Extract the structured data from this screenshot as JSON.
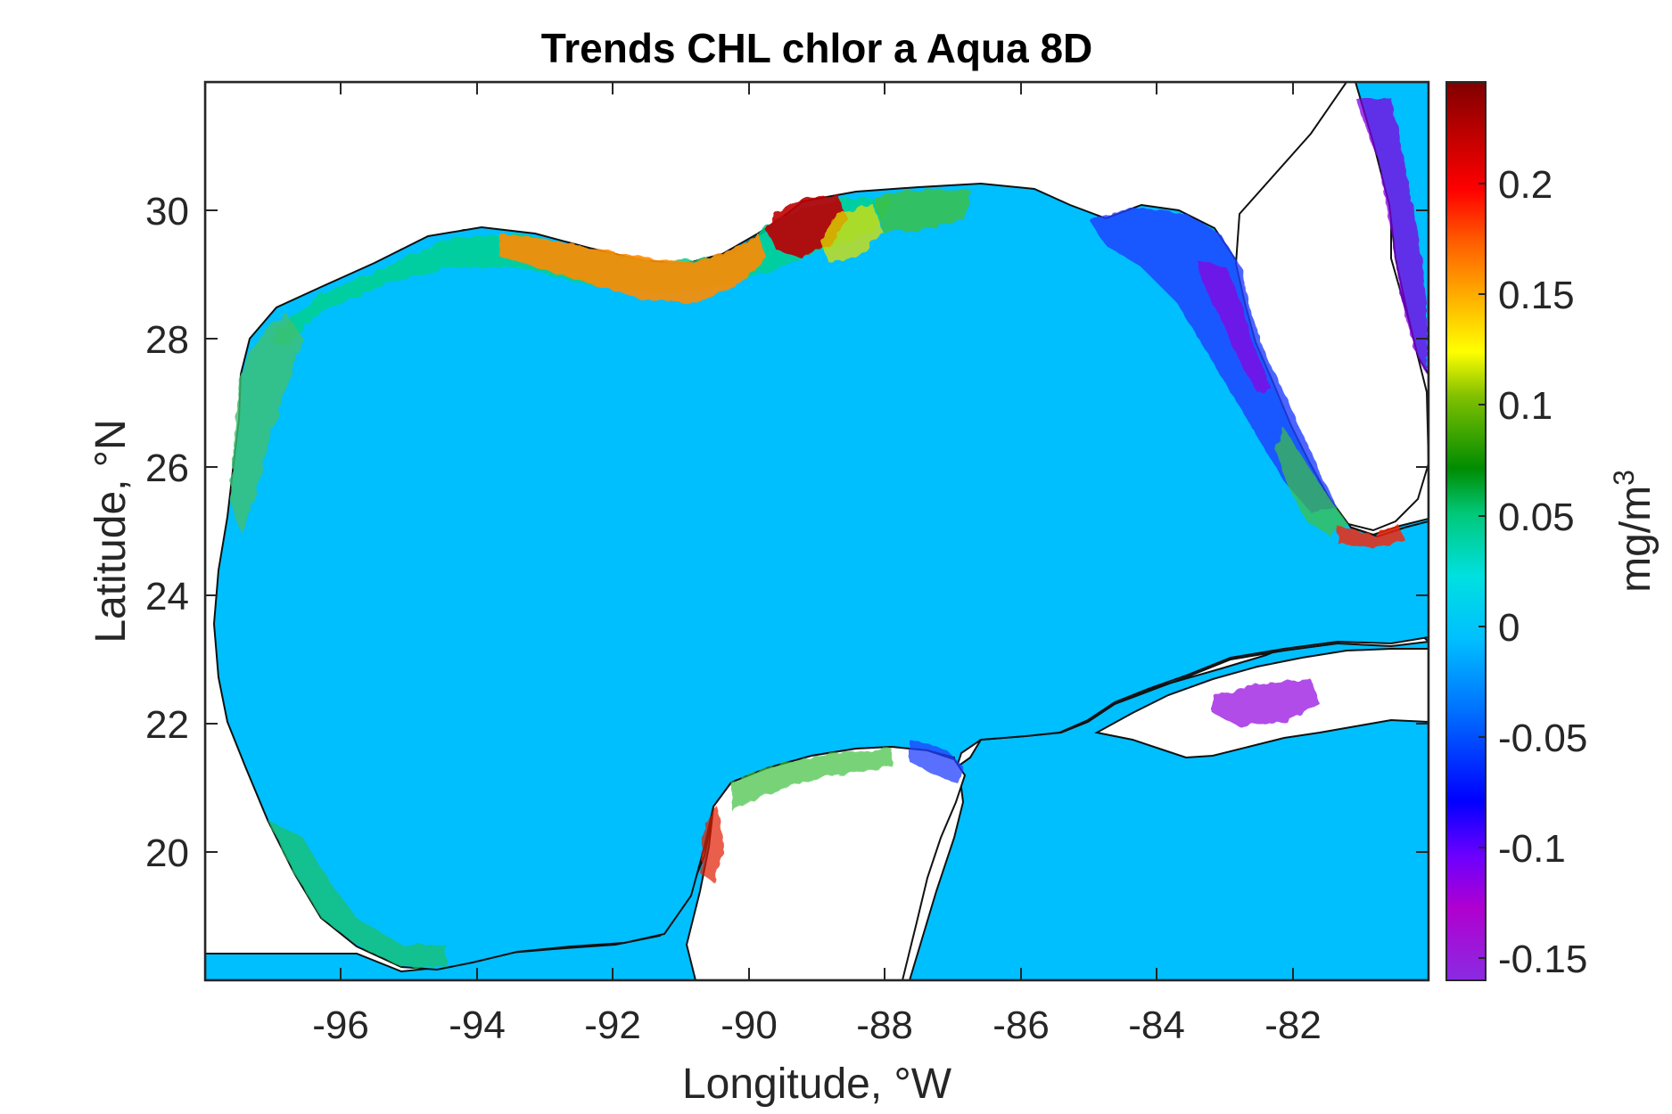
{
  "map": {
    "title": "Trends CHL chlor a Aqua 8D",
    "xlabel": "Longitude, °W",
    "ylabel": "Latitude, °N",
    "x_ticks": [
      "-96",
      "-94",
      "-92",
      "-90",
      "-88",
      "-86",
      "-84",
      "-82"
    ],
    "y_ticks": [
      "30",
      "28",
      "26",
      "24",
      "22",
      "20"
    ],
    "xlim": [
      -98,
      -80
    ],
    "ylim": [
      18,
      32
    ],
    "ocean_color": "#00bfff",
    "land_color": "#ffffff"
  },
  "colorbar": {
    "label": "mg/m",
    "label_sup": "3",
    "ticks": [
      "0.2",
      "0.15",
      "0.1",
      "0.05",
      "0",
      "-0.05",
      "-0.1",
      "-0.15"
    ],
    "range": [
      -0.16,
      0.245
    ],
    "colors": [
      "#8a2be2",
      "#b000d0",
      "#6a00ff",
      "#0000ff",
      "#0070ff",
      "#00bfff",
      "#00e0e0",
      "#00c878",
      "#008c00",
      "#80c000",
      "#ffff00",
      "#ffb000",
      "#ff6000",
      "#ff0000",
      "#c00000",
      "#800000"
    ]
  },
  "chart_data": {
    "type": "heatmap",
    "title": "Trends CHL chlor a Aqua 8D",
    "xlabel": "Longitude, °W",
    "ylabel": "Latitude, °N",
    "xlim": [
      -98,
      -80
    ],
    "ylim": [
      18,
      32
    ],
    "colorbar_label": "mg/m3",
    "colorbar_range": [
      -0.16,
      0.245
    ]
  }
}
